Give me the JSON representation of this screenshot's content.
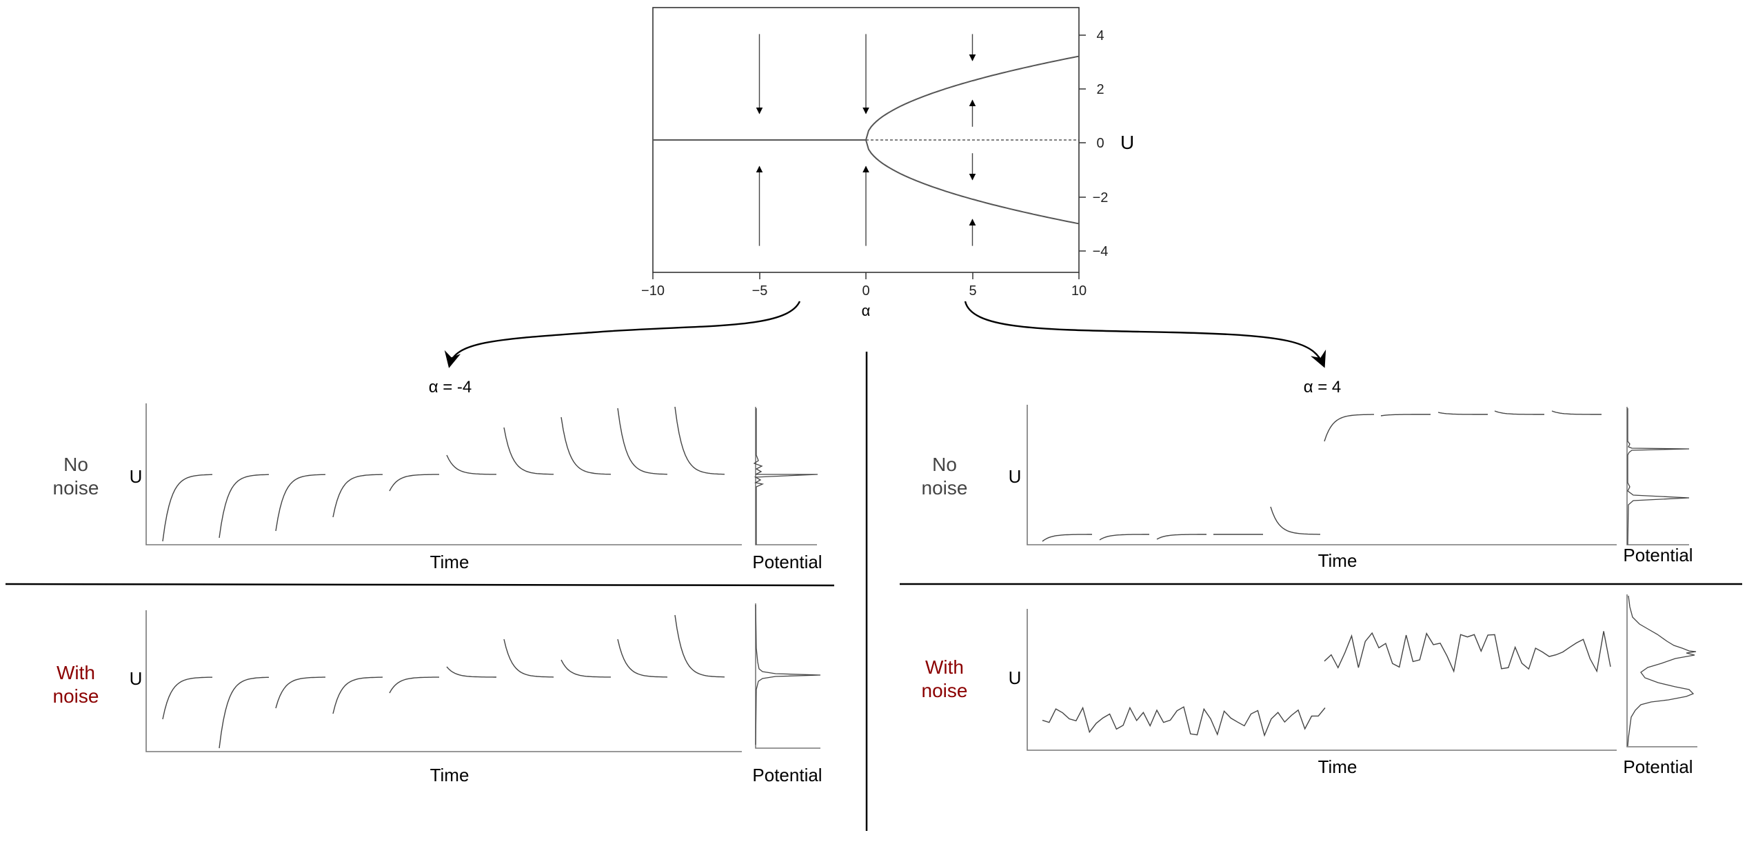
{
  "bifurcation": {
    "x_label": "α",
    "y_label": "U",
    "x_ticks": [
      "−10",
      "−5",
      "0",
      "5",
      "10"
    ],
    "y_ticks": [
      "4",
      "2",
      "0",
      "−2",
      "−4"
    ]
  },
  "left_panel": {
    "title": "α = -4",
    "rows": [
      {
        "label_line1": "No",
        "label_line2": "noise",
        "label_color": "#444444",
        "y_label": "U",
        "x_label": "Time",
        "side_label": "Potential"
      },
      {
        "label_line1": "With",
        "label_line2": "noise",
        "label_color": "#8b0000",
        "y_label": "U",
        "x_label": "Time",
        "side_label": "Potential"
      }
    ]
  },
  "right_panel": {
    "title": "α = 4",
    "rows": [
      {
        "label_line1": "No",
        "label_line2": "noise",
        "label_color": "#444444",
        "y_label": "U",
        "x_label": "Time",
        "side_label": "Potential"
      },
      {
        "label_line1": "With",
        "label_line2": "noise",
        "label_color": "#8b0000",
        "y_label": "U",
        "x_label": "Time",
        "side_label": "Potential"
      }
    ]
  },
  "chart_data": {
    "type": "line",
    "xlim": [
      -10,
      10
    ],
    "ylim": [
      -5,
      5
    ],
    "branches": [
      {
        "style": "solid",
        "x": [
          -10,
          0
        ],
        "y": [
          0,
          0
        ]
      },
      {
        "style": "dashed",
        "x": [
          0,
          10
        ],
        "y": [
          0,
          0
        ]
      },
      {
        "style": "solid",
        "equation": "U = sqrt(α)",
        "x_range": [
          0,
          10
        ]
      },
      {
        "style": "solid",
        "equation": "U = -sqrt(α)",
        "x_range": [
          0,
          10
        ]
      }
    ],
    "arrows": [
      {
        "x": -5,
        "from": 4,
        "to": 1
      },
      {
        "x": -5,
        "from": -4,
        "to": -1
      },
      {
        "x": 0,
        "from": 4,
        "to": 1
      },
      {
        "x": 0,
        "from": -4,
        "to": -1
      },
      {
        "x": 5,
        "from": 4,
        "to": 3
      },
      {
        "x": 5,
        "from": 0.5,
        "to": 1.5
      },
      {
        "x": 5,
        "from": -0.5,
        "to": -1.5
      },
      {
        "x": 5,
        "from": -4,
        "to": -3
      }
    ]
  }
}
